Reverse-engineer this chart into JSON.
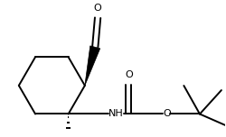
{
  "bg_color": "#ffffff",
  "line_color": "#000000",
  "lw": 1.4,
  "figsize": [
    2.5,
    1.52
  ],
  "dpi": 100,
  "label_O_cho": "O",
  "label_O_carb": "O",
  "label_O_ester": "O",
  "label_NH": "NH"
}
